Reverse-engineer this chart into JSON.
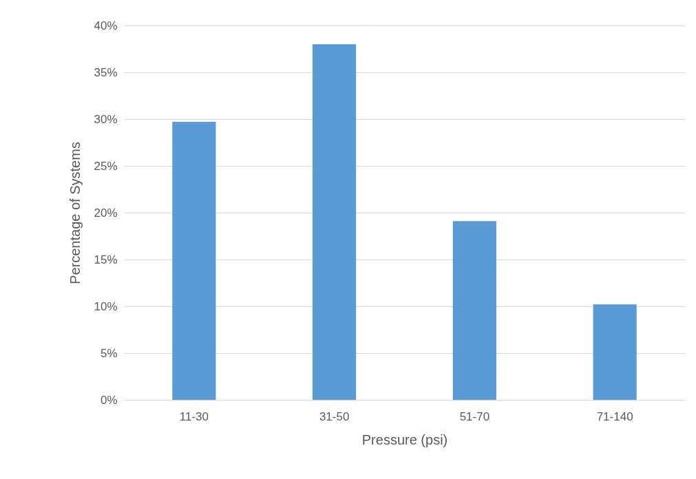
{
  "chart_data": {
    "type": "bar",
    "xlabel": "Pressure (psi)",
    "ylabel": "Percentage of Systems",
    "categories": [
      "11-30",
      "31-50",
      "51-70",
      "71-140"
    ],
    "values": [
      29.7,
      38,
      19.1,
      10.2
    ],
    "color": "#5b9bd5",
    "ylim": [
      0,
      40
    ],
    "yticks": [
      {
        "value": 0,
        "label": "0%"
      },
      {
        "value": 5,
        "label": "5%"
      },
      {
        "value": 10,
        "label": "10%"
      },
      {
        "value": 15,
        "label": "15%"
      },
      {
        "value": 20,
        "label": "20%"
      },
      {
        "value": 25,
        "label": "25%"
      },
      {
        "value": 30,
        "label": "30%"
      },
      {
        "value": 35,
        "label": "35%"
      },
      {
        "value": 40,
        "label": "40%"
      }
    ],
    "grid": "y"
  }
}
